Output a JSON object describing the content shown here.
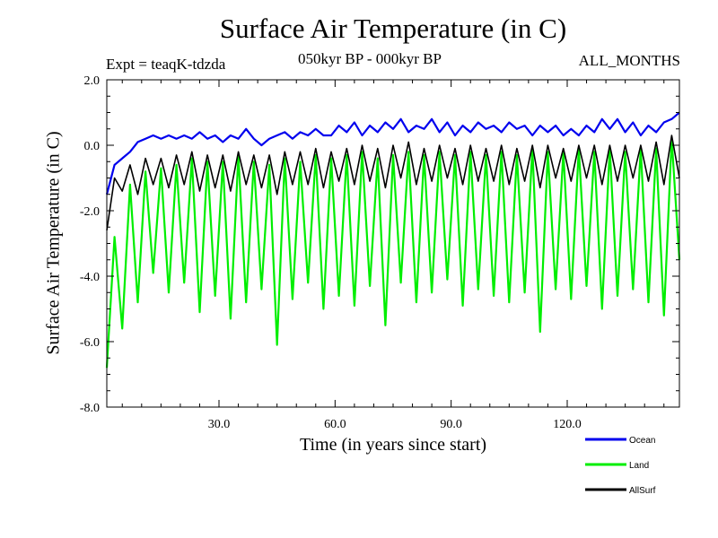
{
  "header": {
    "title": "Surface Air Temperature (in C)",
    "expt": "Expt = teaqK-tdzda",
    "period": "050kyr BP - 000kyr BP",
    "months": "ALL_MONTHS"
  },
  "chart_data": {
    "type": "line",
    "title": "Surface Air Temperature (in C)",
    "xlabel": "Time (in years since start)",
    "ylabel": "Surface Air Temperature (in C)",
    "xlim": [
      1,
      149
    ],
    "ylim": [
      -8.0,
      2.0
    ],
    "x_ticks": [
      30,
      60,
      90,
      120
    ],
    "x_tick_labels": [
      "30.0",
      "60.0",
      "90.0",
      "120.0"
    ],
    "y_ticks": [
      -8,
      -6,
      -4,
      -2,
      0,
      2
    ],
    "y_tick_labels": [
      "-8.0",
      "-6.0",
      "-4.0",
      "-2.0",
      "0.0",
      "2.0"
    ],
    "legend_position": "bottom-right",
    "x": [
      1,
      3,
      5,
      7,
      9,
      11,
      13,
      15,
      17,
      19,
      21,
      23,
      25,
      27,
      29,
      31,
      33,
      35,
      37,
      39,
      41,
      43,
      45,
      47,
      49,
      51,
      53,
      55,
      57,
      59,
      61,
      63,
      65,
      67,
      69,
      71,
      73,
      75,
      77,
      79,
      81,
      83,
      85,
      87,
      89,
      91,
      93,
      95,
      97,
      99,
      101,
      103,
      105,
      107,
      109,
      111,
      113,
      115,
      117,
      119,
      121,
      123,
      125,
      127,
      129,
      131,
      133,
      135,
      137,
      139,
      141,
      143,
      145,
      147,
      149
    ],
    "series": [
      {
        "name": "Ocean",
        "color": "#0000ee",
        "values": [
          -1.5,
          -0.6,
          -0.4,
          -0.2,
          0.1,
          0.2,
          0.3,
          0.2,
          0.3,
          0.2,
          0.3,
          0.2,
          0.4,
          0.2,
          0.3,
          0.1,
          0.3,
          0.2,
          0.5,
          0.2,
          0.0,
          0.2,
          0.3,
          0.4,
          0.2,
          0.4,
          0.3,
          0.5,
          0.3,
          0.3,
          0.6,
          0.4,
          0.7,
          0.3,
          0.6,
          0.4,
          0.7,
          0.5,
          0.8,
          0.4,
          0.6,
          0.5,
          0.8,
          0.4,
          0.7,
          0.3,
          0.6,
          0.4,
          0.7,
          0.5,
          0.6,
          0.4,
          0.7,
          0.5,
          0.6,
          0.3,
          0.6,
          0.4,
          0.6,
          0.3,
          0.5,
          0.3,
          0.6,
          0.4,
          0.8,
          0.5,
          0.8,
          0.4,
          0.7,
          0.3,
          0.6,
          0.4,
          0.7,
          0.8,
          1.0
        ]
      },
      {
        "name": "Land",
        "color": "#00ee00",
        "values": [
          -6.8,
          -2.8,
          -5.6,
          -1.2,
          -4.8,
          -0.8,
          -3.9,
          -0.7,
          -4.5,
          -0.6,
          -4.2,
          -0.4,
          -5.1,
          -0.5,
          -4.6,
          -0.5,
          -5.3,
          -0.3,
          -4.8,
          -0.5,
          -4.4,
          -0.6,
          -6.1,
          -0.4,
          -4.7,
          -0.5,
          -4.2,
          -0.3,
          -5.0,
          -0.4,
          -4.6,
          -0.3,
          -4.9,
          -0.2,
          -4.3,
          -0.4,
          -5.5,
          -0.3,
          -4.2,
          -0.2,
          -4.8,
          -0.3,
          -4.5,
          -0.2,
          -4.1,
          -0.3,
          -4.9,
          -0.2,
          -4.4,
          -0.3,
          -4.6,
          -0.2,
          -4.8,
          -0.3,
          -4.5,
          -0.1,
          -5.7,
          -0.2,
          -4.4,
          -0.2,
          -4.7,
          -0.1,
          -4.3,
          -0.2,
          -5.0,
          -0.1,
          -4.6,
          -0.2,
          -4.4,
          -0.1,
          -4.8,
          -0.1,
          -5.2,
          0.2,
          -3.5
        ]
      },
      {
        "name": "AllSurf",
        "color": "#000000",
        "values": [
          -2.6,
          -1.0,
          -1.4,
          -0.6,
          -1.5,
          -0.4,
          -1.2,
          -0.4,
          -1.3,
          -0.3,
          -1.2,
          -0.2,
          -1.4,
          -0.3,
          -1.3,
          -0.3,
          -1.4,
          -0.2,
          -1.2,
          -0.3,
          -1.3,
          -0.3,
          -1.5,
          -0.2,
          -1.2,
          -0.2,
          -1.2,
          -0.1,
          -1.3,
          -0.2,
          -1.1,
          -0.1,
          -1.2,
          0.0,
          -1.1,
          -0.1,
          -1.3,
          0.0,
          -1.0,
          0.1,
          -1.2,
          -0.1,
          -1.1,
          0.0,
          -1.0,
          -0.1,
          -1.2,
          0.0,
          -1.1,
          -0.1,
          -1.1,
          0.0,
          -1.2,
          -0.1,
          -1.1,
          0.0,
          -1.3,
          0.0,
          -1.0,
          -0.1,
          -1.1,
          0.0,
          -1.0,
          0.0,
          -1.2,
          0.0,
          -1.1,
          0.0,
          -1.0,
          0.0,
          -1.1,
          0.1,
          -1.2,
          0.3,
          -1.0
        ]
      }
    ]
  }
}
